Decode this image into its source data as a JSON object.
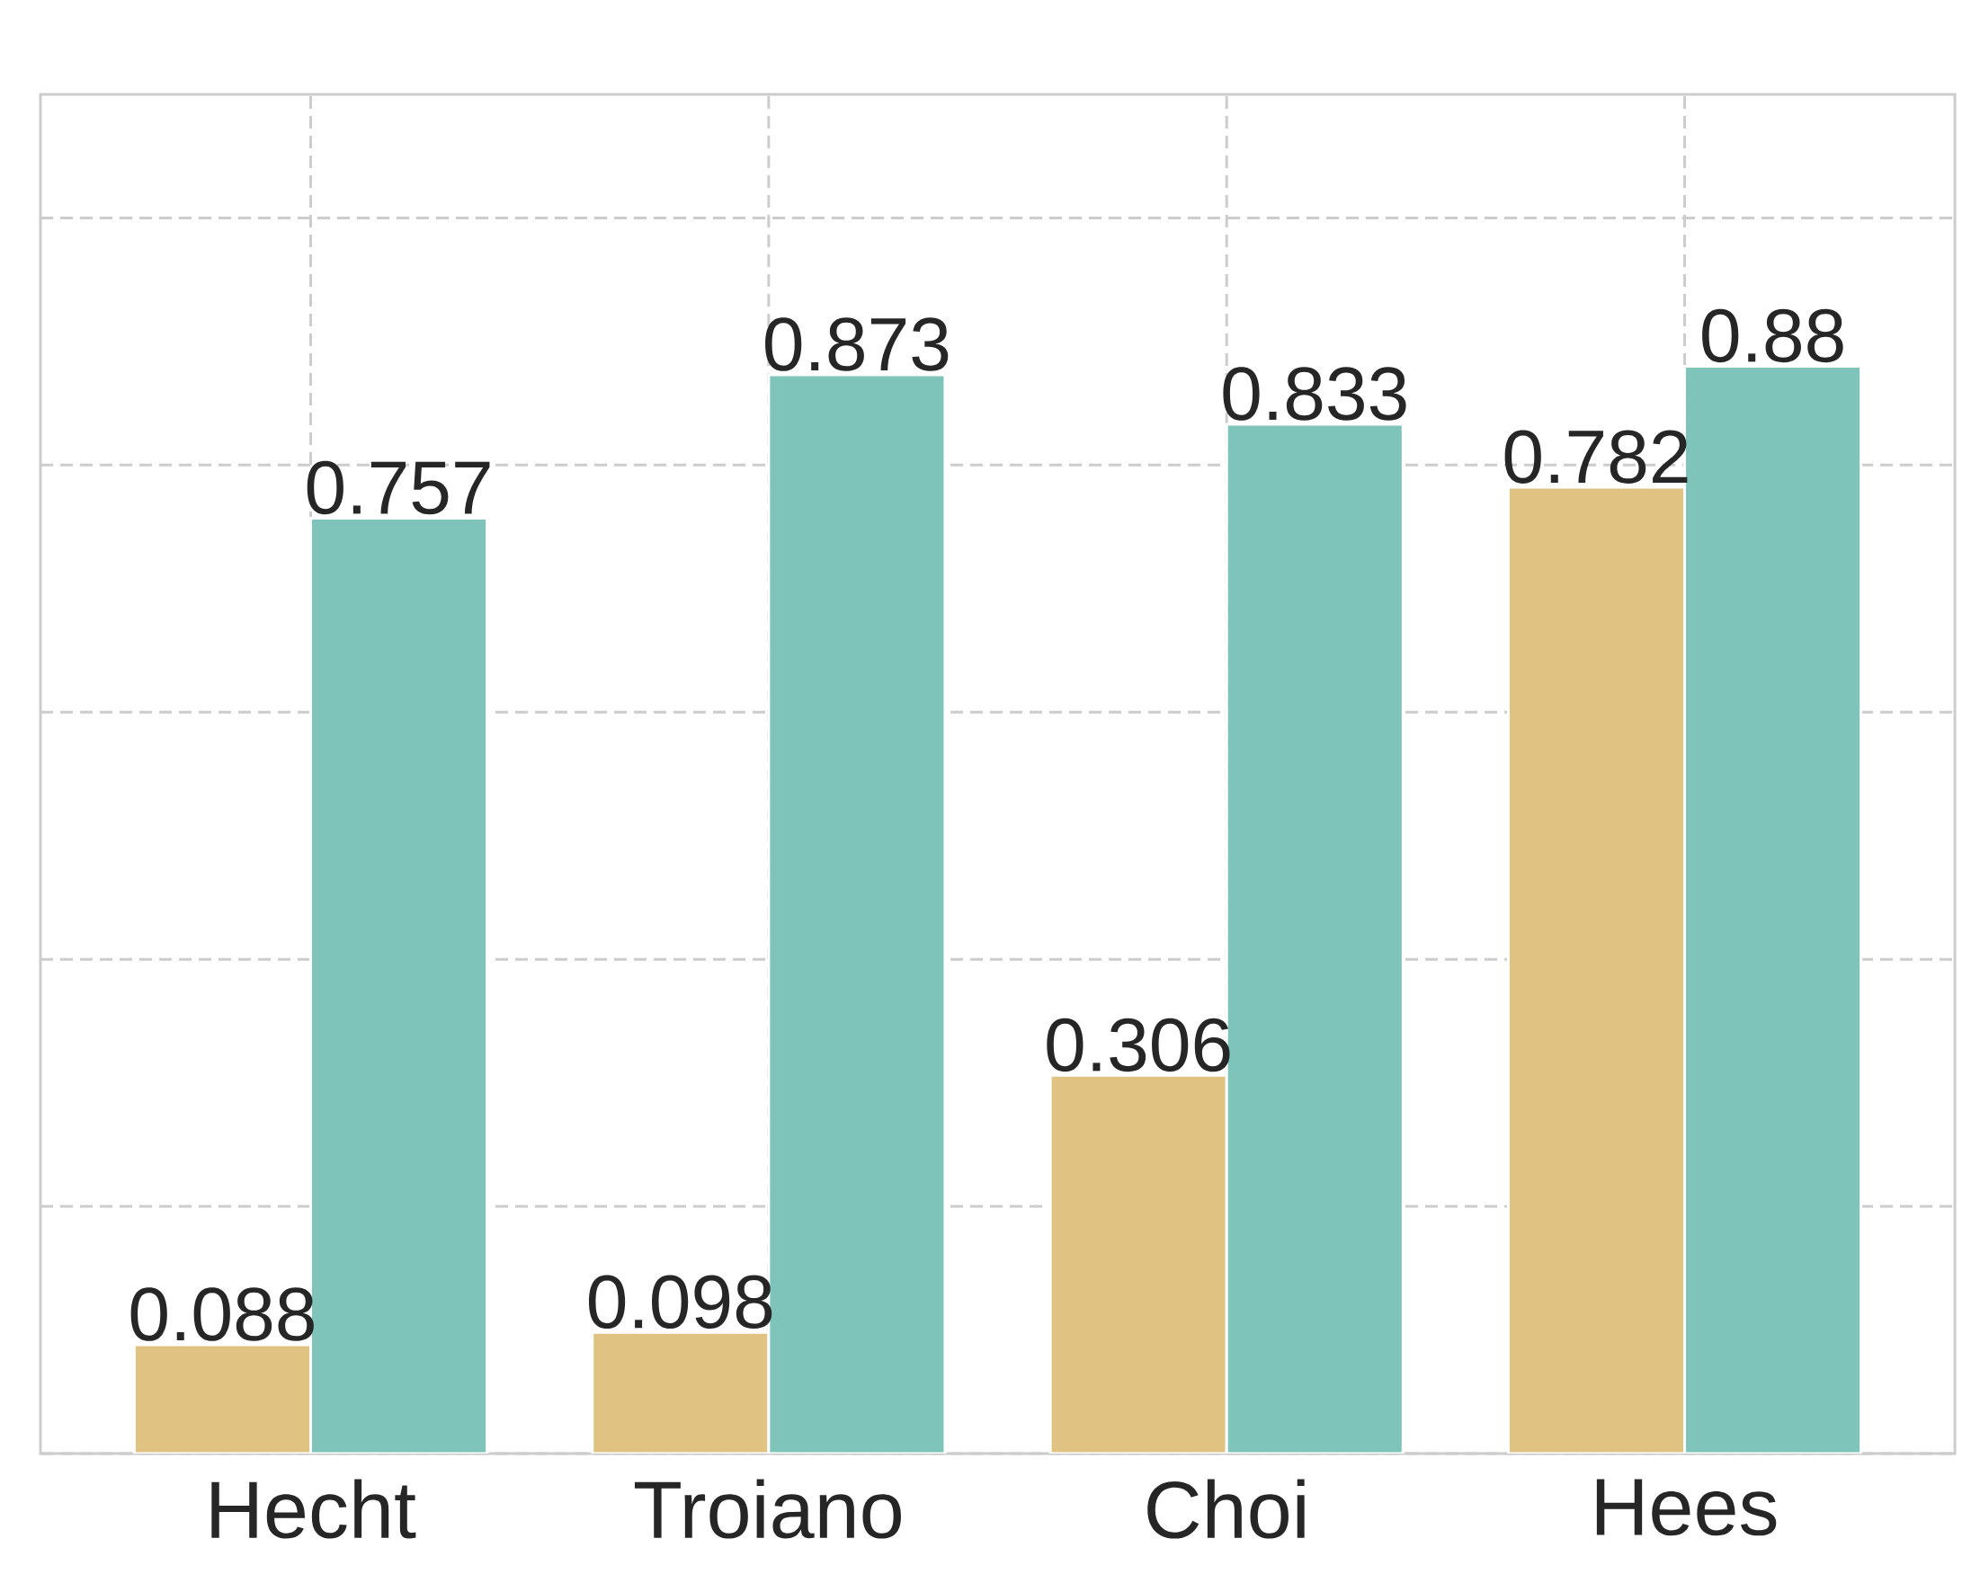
{
  "chart_data": {
    "type": "bar",
    "categories": [
      "Hecht",
      "Troiano",
      "Choi",
      "Hees"
    ],
    "series": [
      {
        "color": "#e0c283",
        "values": [
          0.088,
          0.098,
          0.306,
          0.782
        ]
      },
      {
        "color": "#7fc4bb",
        "values": [
          0.757,
          0.873,
          0.833,
          0.88
        ]
      }
    ],
    "ylim": [
      0,
      1.1
    ],
    "yticks": [
      {
        "value": 0,
        "label": null
      },
      {
        "value": 0.2,
        "label": null
      },
      {
        "value": 0.4,
        "label": null
      },
      {
        "value": 0.6,
        "label": null
      },
      {
        "value": 0.8,
        "label": null
      },
      {
        "value": 1.0,
        "label": null
      }
    ],
    "tick_labels": "x",
    "grid": true,
    "data_labels": true
  }
}
